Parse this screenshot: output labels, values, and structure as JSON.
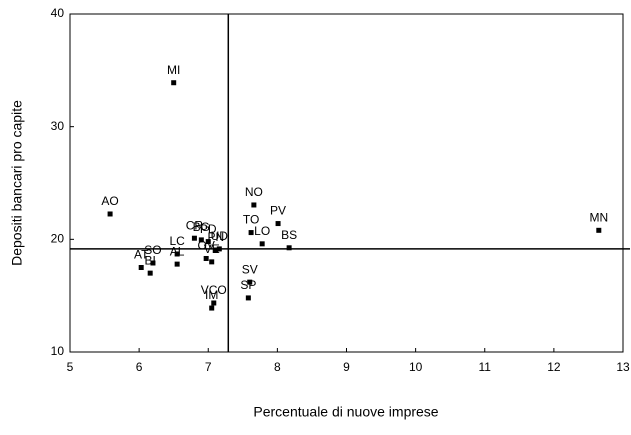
{
  "chart_data": {
    "type": "scatter",
    "x_label": "Percentuale di nuove imprese",
    "y_label": "Depositi bancari pro capite",
    "labels": [
      "MI",
      "AO",
      "NO",
      "PV",
      "TO",
      "LO",
      "BS",
      "MN",
      "CR",
      "BG",
      "PD",
      "LC",
      "AL",
      "SO",
      "AT",
      "BI",
      "OV",
      "VE",
      "PN",
      "UD",
      "SV",
      "SP",
      "VCO",
      "IM"
    ],
    "x": [
      6.5,
      5.58,
      7.66,
      8.01,
      7.62,
      7.78,
      8.17,
      12.65,
      6.8,
      6.9,
      7.0,
      6.55,
      6.55,
      6.2,
      6.03,
      6.16,
      6.97,
      7.05,
      7.11,
      7.16,
      7.6,
      7.58,
      7.08,
      7.05
    ],
    "values": [
      33.9,
      22.25,
      23.05,
      21.4,
      20.6,
      19.6,
      19.25,
      20.8,
      20.1,
      19.95,
      19.8,
      18.7,
      17.8,
      17.9,
      17.5,
      17.0,
      18.3,
      18.0,
      19.05,
      19.15,
      16.2,
      14.8,
      14.35,
      13.9
    ],
    "color": "#000000",
    "xlim": [
      5,
      13
    ],
    "ylim": [
      10,
      40
    ],
    "xticks": [
      5,
      6,
      7,
      8,
      9,
      10,
      11,
      12,
      13
    ],
    "yticks": [
      10,
      20,
      30,
      40
    ],
    "ref_x": 7.29,
    "ref_y": 19.15
  }
}
